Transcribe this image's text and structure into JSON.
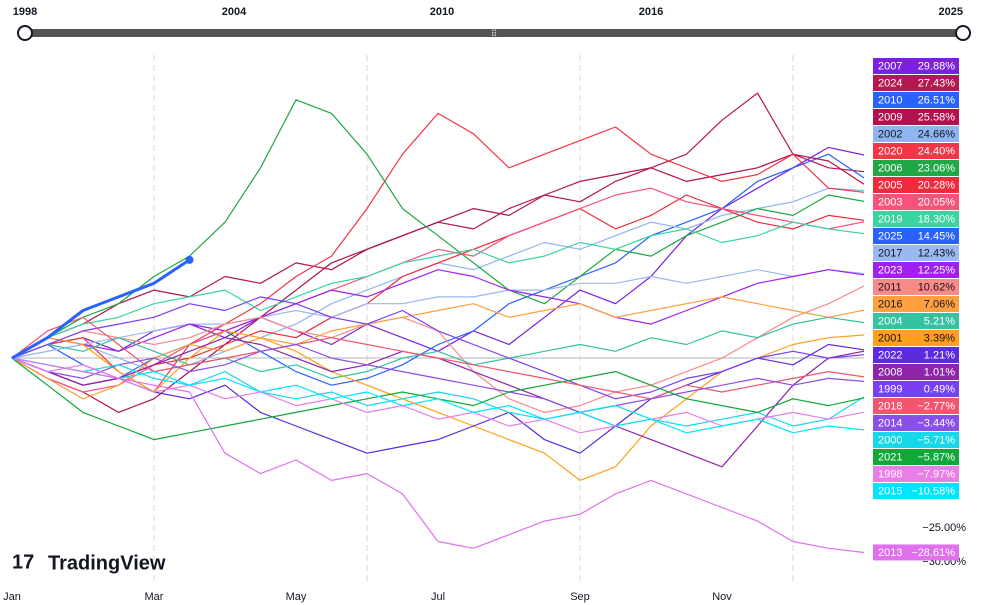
{
  "chart_data": {
    "type": "line",
    "slider_labels": [
      "1998",
      "2004",
      "2010",
      "2016",
      "2025"
    ],
    "watermark": "TradingView",
    "xticks": [
      {
        "value": 0,
        "label": "Jan"
      },
      {
        "value": 2,
        "label": "Mar"
      },
      {
        "value": 4,
        "label": "May"
      },
      {
        "value": 6,
        "label": "Jul"
      },
      {
        "value": 8,
        "label": "Sep"
      },
      {
        "value": 10,
        "label": "Nov"
      }
    ],
    "xgrid": [
      2,
      5,
      8,
      11
    ],
    "xlim": [
      0,
      12
    ],
    "ylim": [
      -33.4,
      44.6
    ],
    "yticks": [
      {
        "value": -25,
        "label": "−25.00%"
      },
      {
        "value": -30,
        "label": "−30.00%"
      }
    ],
    "x": [
      0,
      0.5,
      1,
      1.5,
      2,
      2.5,
      3,
      3.5,
      4,
      4.5,
      5,
      5.5,
      6,
      6.5,
      7,
      7.5,
      8,
      8.5,
      9,
      9.5,
      10,
      10.5,
      11,
      11.5,
      12
    ],
    "series": [
      {
        "name": "2007",
        "color": "#7b1fe0",
        "values": [
          0,
          2,
          3,
          1,
          4,
          5,
          3,
          6,
          4,
          2,
          5,
          3,
          1,
          4,
          2,
          6,
          10,
          8,
          12,
          18,
          22,
          25,
          28,
          31,
          29.88
        ],
        "value_labels": [
          "29.88%"
        ]
      },
      {
        "name": "2024",
        "color": "#b5174f",
        "values": [
          0,
          3,
          5,
          8,
          10,
          9,
          12,
          11,
          14,
          13,
          16,
          18,
          20,
          19,
          22,
          24,
          23,
          26,
          28,
          30,
          35,
          39,
          30,
          28,
          27.43
        ],
        "value_labels": [
          "27.43%"
        ]
      },
      {
        "name": "2010",
        "color": "#2962ff",
        "values": [
          0,
          2,
          -1,
          -3,
          0,
          2,
          4,
          1,
          -2,
          -4,
          -3,
          -1,
          2,
          4,
          8,
          10,
          12,
          14,
          18,
          20,
          22,
          26,
          28,
          30,
          26.51
        ],
        "value_labels": [
          "26.51%"
        ]
      },
      {
        "name": "2009",
        "color": "#b0124f",
        "values": [
          0,
          -3,
          -5,
          -8,
          -6,
          -2,
          2,
          6,
          10,
          14,
          16,
          18,
          20,
          22,
          21,
          24,
          26,
          27,
          28,
          26,
          27,
          28,
          30,
          29,
          25.58
        ],
        "value_labels": [
          "25.58%"
        ]
      },
      {
        "name": "2002",
        "color": "#90b4f0",
        "values": [
          0,
          1,
          2,
          0,
          -2,
          -1,
          1,
          3,
          5,
          8,
          10,
          12,
          14,
          13,
          15,
          17,
          16,
          18,
          20,
          19,
          21,
          22,
          23,
          25,
          24.66
        ],
        "value_labels": [
          "24.66%"
        ]
      },
      {
        "name": "2020",
        "color": "#f23645",
        "values": [
          0,
          2,
          3,
          -2,
          -5,
          2,
          5,
          8,
          12,
          15,
          22,
          30,
          36,
          33,
          28,
          30,
          32,
          34,
          30,
          28,
          26,
          27,
          30,
          25,
          24.4
        ],
        "value_labels": [
          "24.40%"
        ]
      },
      {
        "name": "2006",
        "color": "#1fa845",
        "values": [
          0,
          3,
          6,
          8,
          12,
          15,
          20,
          28,
          38,
          36,
          30,
          22,
          18,
          14,
          10,
          8,
          12,
          16,
          15,
          18,
          20,
          22,
          21,
          24,
          23.06
        ],
        "value_labels": [
          "23.06%"
        ]
      },
      {
        "name": "2005",
        "color": "#ee2b3a",
        "values": [
          0,
          -2,
          -4,
          -3,
          -1,
          0,
          2,
          4,
          3,
          6,
          8,
          12,
          14,
          16,
          18,
          20,
          22,
          19,
          21,
          24,
          22,
          20,
          19,
          21,
          20.28
        ],
        "value_labels": [
          "20.28%"
        ]
      },
      {
        "name": "2003",
        "color": "#f7527a",
        "values": [
          0,
          -3,
          -5,
          -4,
          -1,
          2,
          4,
          6,
          8,
          10,
          12,
          14,
          16,
          15,
          18,
          20,
          22,
          24,
          25,
          23,
          22,
          21,
          20,
          19,
          20.05
        ],
        "value_labels": [
          "20.05%"
        ]
      },
      {
        "name": "2019",
        "color": "#3bd3a0",
        "values": [
          0,
          3,
          5,
          6,
          8,
          9,
          10,
          7,
          9,
          11,
          12,
          14,
          15,
          16,
          14,
          15,
          17,
          16,
          18,
          19,
          17,
          18,
          20,
          19,
          18.3
        ],
        "value_labels": [
          "18.30%"
        ]
      },
      {
        "name": "2025",
        "color": "#2962ff",
        "values": [
          0,
          3,
          7,
          9,
          11,
          14.45,
          null,
          null,
          null,
          null,
          null,
          null,
          null,
          null,
          null,
          null,
          null,
          null,
          null,
          null,
          null,
          null,
          null,
          null,
          null
        ],
        "value_labels": [
          "14.45%"
        ]
      },
      {
        "name": "2017",
        "color": "#9ab8f2",
        "values": [
          0,
          1,
          2,
          3,
          4,
          5,
          5,
          6,
          7,
          6,
          8,
          8,
          9,
          9,
          10,
          10,
          11,
          11,
          12,
          11,
          12,
          13,
          12,
          13,
          12.43
        ],
        "value_labels": [
          "12.43%"
        ]
      },
      {
        "name": "2023",
        "color": "#a020f0",
        "values": [
          0,
          3,
          2,
          1,
          3,
          5,
          4,
          6,
          8,
          10,
          9,
          11,
          13,
          12,
          10,
          9,
          8,
          6,
          5,
          7,
          9,
          11,
          12,
          13,
          12.25
        ],
        "value_labels": [
          "12.25%"
        ]
      },
      {
        "name": "2011",
        "color": "#f88b88",
        "values": [
          0,
          2,
          4,
          3,
          2,
          3,
          5,
          6,
          4,
          3,
          5,
          6,
          4,
          -2,
          -6,
          -8,
          -7,
          -5,
          -4,
          -2,
          0,
          3,
          6,
          8,
          10.62
        ],
        "value_labels": [
          "10.62%"
        ]
      },
      {
        "name": "2016",
        "color": "#ffa040",
        "values": [
          0,
          -3,
          -6,
          -4,
          0,
          2,
          1,
          3,
          2,
          4,
          5,
          6,
          7,
          8,
          6,
          7,
          8,
          6,
          7,
          8,
          9,
          8,
          7,
          6,
          7.06
        ],
        "value_labels": [
          "7.06%"
        ]
      },
      {
        "name": "2004",
        "color": "#36c2a0",
        "values": [
          0,
          2,
          1,
          3,
          1,
          -1,
          0,
          -2,
          -1,
          -3,
          -2,
          0,
          1,
          -1,
          0,
          1,
          2,
          1,
          3,
          2,
          4,
          3,
          5,
          6,
          5.21
        ],
        "value_labels": [
          "5.21%"
        ]
      },
      {
        "name": "2001",
        "color": "#ff9f1a",
        "values": [
          0,
          3,
          2,
          -2,
          -5,
          0,
          4,
          3,
          1,
          -2,
          -4,
          -6,
          -8,
          -10,
          -12,
          -14,
          -18,
          -16,
          -10,
          -6,
          -2,
          0,
          2,
          3,
          3.39
        ],
        "value_labels": [
          "3.39%"
        ]
      },
      {
        "name": "2022",
        "color": "#5b2bdf",
        "values": [
          0,
          -2,
          -4,
          -3,
          -5,
          -6,
          -4,
          -8,
          -10,
          -12,
          -14,
          -13,
          -12,
          -10,
          -8,
          -12,
          -14,
          -10,
          -6,
          -4,
          -2,
          0,
          -1,
          2,
          1.21
        ],
        "value_labels": [
          "1.21%"
        ]
      },
      {
        "name": "2008",
        "color": "#8e24aa",
        "values": [
          0,
          -2,
          -4,
          -3,
          -1,
          1,
          3,
          2,
          0,
          -2,
          -1,
          1,
          0,
          -2,
          -4,
          -6,
          -8,
          -10,
          -12,
          -14,
          -16,
          -10,
          -4,
          0,
          1.01
        ],
        "value_labels": [
          "1.01%"
        ]
      },
      {
        "name": "1999",
        "color": "#7b3ff2",
        "values": [
          0,
          2,
          4,
          5,
          6,
          8,
          7,
          9,
          8,
          6,
          5,
          7,
          4,
          2,
          0,
          -2,
          -4,
          -6,
          -5,
          -3,
          -2,
          0,
          1,
          0,
          0.49
        ],
        "value_labels": [
          "0.49%"
        ]
      },
      {
        "name": "2018",
        "color": "#f2566e",
        "values": [
          0,
          4,
          6,
          2,
          -2,
          -1,
          0,
          1,
          2,
          3,
          2,
          1,
          0,
          -1,
          -2,
          -3,
          -4,
          -5,
          -6,
          -4,
          -5,
          -4,
          -3,
          -2,
          -2.77
        ],
        "value_labels": [
          "−2.77%"
        ]
      },
      {
        "name": "2014",
        "color": "#8a4fe8",
        "values": [
          0,
          -2,
          -3,
          -1,
          0,
          -2,
          -1,
          1,
          2,
          0,
          -1,
          -2,
          -3,
          -4,
          -5,
          -6,
          -8,
          -7,
          -6,
          -5,
          -4,
          -3,
          -4,
          -3,
          -3.44
        ],
        "value_labels": [
          "−3.44%"
        ]
      },
      {
        "name": "2000",
        "color": "#16d8e8",
        "values": [
          0,
          -1,
          -2,
          -1,
          -3,
          -4,
          -2,
          -5,
          -6,
          -5,
          -7,
          -6,
          -5,
          -6,
          -8,
          -9,
          -8,
          -7,
          -9,
          -10,
          -9,
          -8,
          -10,
          -9,
          -5.71
        ],
        "value_labels": [
          "−5.71%"
        ]
      },
      {
        "name": "2021",
        "color": "#10a838",
        "values": [
          0,
          -4,
          -8,
          -10,
          -12,
          -11,
          -10,
          -9,
          -8,
          -7,
          -6,
          -5,
          -6,
          -7,
          -5,
          -4,
          -3,
          -2,
          -4,
          -6,
          -7,
          -8,
          -6,
          -7,
          -5.87
        ],
        "value_labels": [
          "−5.87%"
        ]
      },
      {
        "name": "1998",
        "color": "#e87ee8",
        "values": [
          0,
          -2,
          -1,
          -3,
          -5,
          -4,
          -6,
          -5,
          -7,
          -6,
          -8,
          -7,
          -9,
          -8,
          -10,
          -9,
          -11,
          -10,
          -9,
          -8,
          -10,
          -9,
          -8,
          -9,
          -7.97
        ],
        "value_labels": [
          "−7.97%"
        ]
      },
      {
        "name": "2015",
        "color": "#00e5ff",
        "values": [
          0,
          -1,
          -2,
          -3,
          -2,
          -4,
          -3,
          -5,
          -4,
          -6,
          -5,
          -7,
          -6,
          -8,
          -7,
          -9,
          -8,
          -10,
          -9,
          -11,
          -10,
          -9,
          -11,
          -10,
          -10.58
        ],
        "value_labels": [
          "−10.58%"
        ]
      },
      {
        "name": "2013",
        "color": "#e070ee",
        "values": [
          0,
          -1,
          -2,
          -3,
          -4,
          -5,
          -14,
          -17,
          -15,
          -18,
          -17,
          -20,
          -27,
          -28,
          -26,
          -24,
          -23,
          -20,
          -18,
          -20,
          -22,
          -24,
          -27,
          -28,
          -28.61
        ],
        "value_labels": [
          "−28.61%"
        ]
      }
    ]
  }
}
